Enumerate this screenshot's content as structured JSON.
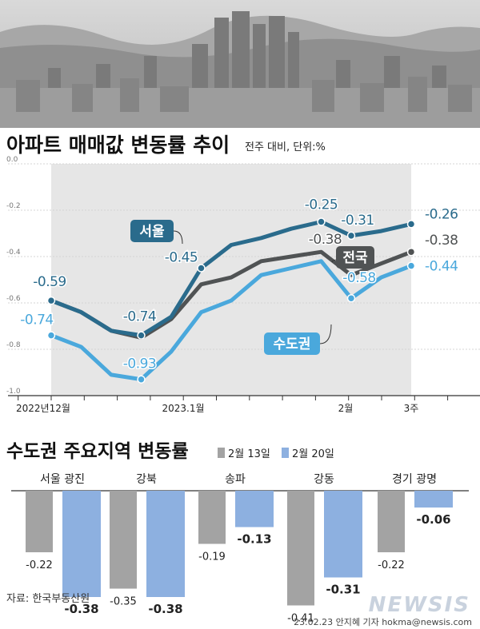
{
  "header": {
    "title": "아파트 매매값 변동률 추이",
    "subtitle": "전주 대비, 단위:%"
  },
  "chart_data": [
    {
      "type": "line",
      "title": "아파트 매매값 변동률 추이",
      "unit": "전주 대비, 단위:%",
      "ylim": [
        -1.0,
        0.0
      ],
      "yticks": [
        "0.0",
        "-0.2",
        "-0.4",
        "-0.6",
        "-0.8",
        "-1.0"
      ],
      "x_labels": [
        "2022년12월",
        "2023.1월",
        "2월",
        "3주"
      ],
      "series": [
        {
          "name": "서울",
          "color": "#2a6b8c",
          "values": [
            -0.59,
            -0.64,
            -0.72,
            -0.74,
            -0.66,
            -0.45,
            -0.35,
            -0.32,
            -0.28,
            -0.25,
            -0.31,
            -0.29,
            -0.26
          ],
          "labels": [
            "-0.59",
            "",
            "",
            "-0.74",
            "",
            "-0.45",
            "",
            "",
            "",
            "-0.25",
            "-0.31",
            "",
            "-0.26"
          ]
        },
        {
          "name": "전국",
          "color": "#505354",
          "values": [
            -0.59,
            -0.64,
            -0.72,
            -0.75,
            -0.67,
            -0.52,
            -0.49,
            -0.42,
            -0.4,
            -0.38,
            -0.48,
            -0.43,
            -0.38
          ],
          "labels": [
            "",
            "",
            "",
            "",
            "",
            "",
            "",
            "",
            "",
            "-0.38",
            "",
            "",
            "-0.38"
          ]
        },
        {
          "name": "수도권",
          "color": "#4aa8dc",
          "values": [
            -0.74,
            -0.79,
            -0.91,
            -0.93,
            -0.81,
            -0.64,
            -0.59,
            -0.48,
            -0.45,
            -0.42,
            -0.58,
            -0.49,
            -0.44
          ],
          "labels": [
            "-0.74",
            "",
            "",
            "-0.93",
            "",
            "",
            "",
            "",
            "",
            "",
            "-0.58",
            "",
            "-0.44"
          ]
        }
      ]
    },
    {
      "type": "bar",
      "title": "수도권 주요지역 변동률",
      "legend": [
        "2월 13일",
        "2월 20일"
      ],
      "categories": [
        "서울 광진",
        "강북",
        "송파",
        "강동",
        "경기 광명"
      ],
      "series": [
        {
          "name": "2월 13일",
          "color": "#a3a3a3",
          "values": [
            -0.22,
            -0.35,
            -0.19,
            -0.41,
            -0.22
          ],
          "labels": [
            "-0.22",
            "-0.35",
            "-0.19",
            "-0.41",
            "-0.22"
          ]
        },
        {
          "name": "2월 20일",
          "color": "#8db0e0",
          "values": [
            -0.38,
            -0.38,
            -0.13,
            -0.31,
            -0.06
          ],
          "labels": [
            "-0.38",
            "-0.38",
            "-0.13",
            "-0.31",
            "-0.06"
          ]
        }
      ]
    }
  ],
  "footer": {
    "source": "자료: 한국부동산원",
    "logo": "NEWSIS",
    "credit": "23.02.23 안지혜 기자 hokma@newsis.com"
  }
}
